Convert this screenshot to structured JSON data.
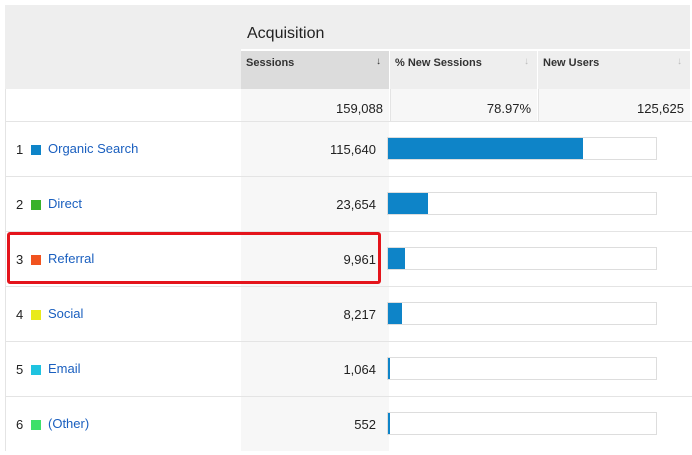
{
  "header": {
    "group_title": "Acquisition",
    "columns": [
      {
        "label": "Sessions",
        "sort_icon": "arrow-down-icon"
      },
      {
        "label": "% New Sessions",
        "sort_icon": "arrow-down-icon"
      },
      {
        "label": "New Users",
        "sort_icon": "arrow-down-icon"
      }
    ]
  },
  "totals": {
    "sessions": "159,088",
    "new_sessions_pct": "78.97%",
    "new_users": "125,625"
  },
  "rows": [
    {
      "index": "1",
      "label": "Organic Search",
      "color": "#0e84c8",
      "sessions": "115,640",
      "bar_fraction": 0.727
    },
    {
      "index": "2",
      "label": "Direct",
      "color": "#38b22a",
      "sessions": "23,654",
      "bar_fraction": 0.149
    },
    {
      "index": "3",
      "label": "Referral",
      "color": "#f1531f",
      "sessions": "9,961",
      "bar_fraction": 0.063
    },
    {
      "index": "4",
      "label": "Social",
      "color": "#e9ea1b",
      "sessions": "8,217",
      "bar_fraction": 0.052
    },
    {
      "index": "5",
      "label": "Email",
      "color": "#1fc3e0",
      "sessions": "1,064",
      "bar_fraction": 0.007
    },
    {
      "index": "6",
      "label": "(Other)",
      "color": "#3ee06a",
      "sessions": "552",
      "bar_fraction": 0.003
    }
  ],
  "colors": {
    "bar": "#0e84c8",
    "link": "#1a5fbf",
    "highlight": "#e4141b"
  }
}
